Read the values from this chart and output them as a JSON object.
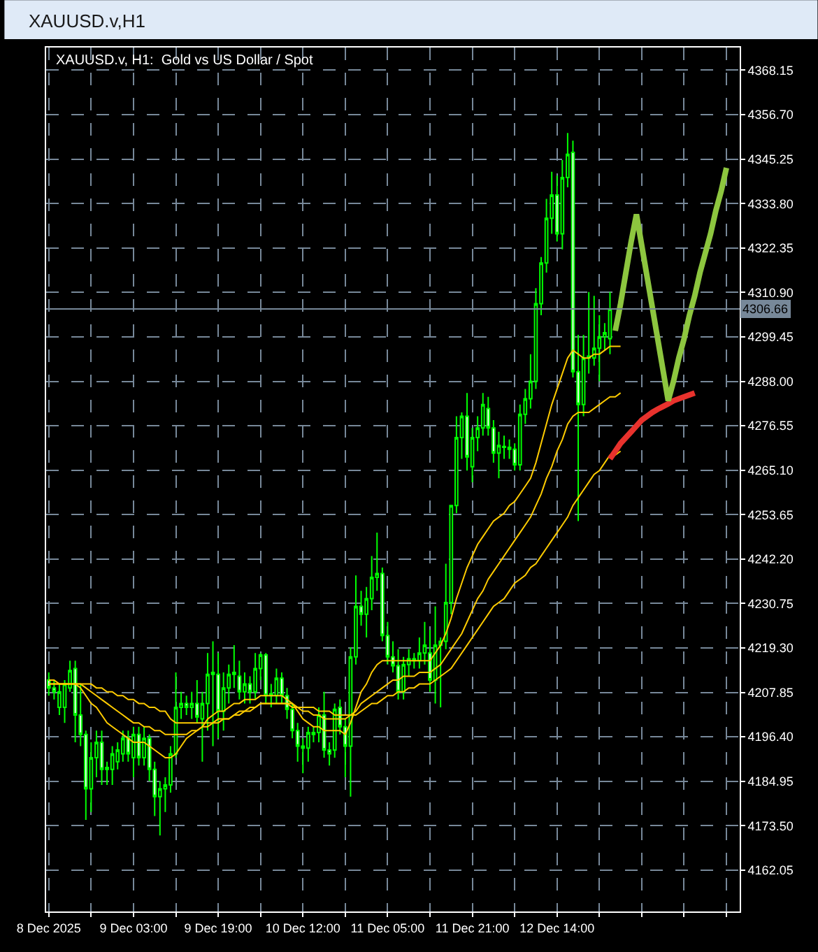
{
  "chart_data": {
    "type": "candlestick",
    "title": "XAUUSD.v,H1",
    "subtitle": "XAUUSD.v, H1:  Gold vs US Dollar / Spot",
    "color": "#00ff00",
    "categories": [
      "8 Dec 2025",
      null,
      null,
      null,
      null,
      null,
      null,
      null,
      null,
      null,
      null,
      null,
      null,
      null,
      null,
      null,
      "9 Dec 03:00",
      null,
      null,
      null,
      null,
      null,
      null,
      null,
      null,
      null,
      null,
      null,
      null,
      null,
      null,
      null,
      "9 Dec 19:00",
      null,
      null,
      null,
      null,
      null,
      null,
      null,
      null,
      null,
      null,
      null,
      null,
      null,
      null,
      null,
      "10 Dec 12:00",
      null,
      null,
      null,
      null,
      null,
      null,
      null,
      null,
      null,
      null,
      null,
      null,
      null,
      null,
      null,
      "11 Dec 05:00",
      null,
      null,
      null,
      null,
      null,
      null,
      null,
      null,
      null,
      null,
      null,
      null,
      null,
      null,
      null,
      "11 Dec 21:00",
      null,
      null,
      null,
      null,
      null,
      null,
      null,
      null,
      null,
      null,
      null,
      null,
      null,
      null,
      null,
      "12 Dec 14:00",
      null,
      null,
      null,
      null,
      null,
      null,
      null,
      null,
      null,
      null,
      null,
      null,
      null,
      null,
      null,
      null,
      null,
      null,
      null,
      null,
      null,
      null,
      null,
      null,
      null,
      null,
      null,
      null,
      null,
      null,
      null,
      null,
      null,
      null
    ],
    "ohlc": [
      [
        4211,
        4213,
        4207,
        4209
      ],
      [
        4209,
        4211,
        4206,
        4208
      ],
      [
        4204,
        4210,
        4202,
        4208
      ],
      [
        4204,
        4211,
        4200,
        4210
      ],
      [
        4209,
        4216,
        4208,
        4213.5
      ],
      [
        4214,
        4216,
        4195,
        4202
      ],
      [
        4202,
        4210,
        4194,
        4197
      ],
      [
        4197,
        4198,
        4175,
        4183
      ],
      [
        4183,
        4195,
        4177,
        4191
      ],
      [
        4191,
        4198,
        4186,
        4195
      ],
      [
        4195,
        4198,
        4184,
        4188
      ],
      [
        4188,
        4190,
        4184,
        4188.5
      ],
      [
        4188,
        4194,
        4184,
        4192
      ],
      [
        4190,
        4195,
        4188,
        4193
      ],
      [
        4192,
        4198,
        4190,
        4196
      ],
      [
        4196,
        4198,
        4190,
        4192
      ],
      [
        4191,
        4199,
        4186,
        4197
      ],
      [
        4197,
        4199,
        4189,
        4191
      ],
      [
        4191,
        4199,
        4189,
        4196
      ],
      [
        4196,
        4197,
        4185,
        4188
      ],
      [
        4188,
        4190,
        4176,
        4181
      ],
      [
        4181,
        4185,
        4171,
        4183
      ],
      [
        4183,
        4186,
        4177,
        4184
      ],
      [
        4184,
        4194,
        4182,
        4192
      ],
      [
        4192,
        4213,
        4191,
        4204
      ],
      [
        4204,
        4208,
        4201,
        4205
      ],
      [
        4205,
        4207,
        4202,
        4204
      ],
      [
        4204,
        4208,
        4201,
        4205
      ],
      [
        4205,
        4211,
        4200,
        4201.5
      ],
      [
        4201,
        4208,
        4190,
        4205
      ],
      [
        4205,
        4218,
        4198,
        4212.5
      ],
      [
        4212.5,
        4221,
        4194,
        4213
      ],
      [
        4212.5,
        4218,
        4196,
        4203
      ],
      [
        4203,
        4213,
        4198,
        4209
      ],
      [
        4209,
        4215,
        4205,
        4212.5
      ],
      [
        4212.5,
        4220,
        4209,
        4213
      ],
      [
        4212,
        4216,
        4206,
        4208
      ],
      [
        4208,
        4213,
        4205,
        4210
      ],
      [
        4210,
        4212,
        4205,
        4208
      ],
      [
        4208,
        4218,
        4206,
        4214
      ],
      [
        4214,
        4218,
        4211,
        4217.5
      ],
      [
        4217.5,
        4218,
        4205,
        4207
      ],
      [
        4207,
        4210,
        4204,
        4207.5
      ],
      [
        4207,
        4214,
        4205,
        4211.5
      ],
      [
        4211.5,
        4213,
        4205,
        4207
      ],
      [
        4207,
        4209,
        4201,
        4203.5
      ],
      [
        4203.5,
        4205,
        4196,
        4198
      ],
      [
        4198,
        4200,
        4190,
        4194
      ],
      [
        4194,
        4196,
        4187,
        4193.5
      ],
      [
        4193.5,
        4199,
        4190,
        4197.5
      ],
      [
        4197.5,
        4199,
        4195,
        4197
      ],
      [
        4197.5,
        4204,
        4195,
        4202
      ],
      [
        4202,
        4208,
        4191,
        4193
      ],
      [
        4193,
        4195,
        4189,
        4192
      ],
      [
        4193,
        4205,
        4191,
        4203.5
      ],
      [
        4204,
        4206,
        4197,
        4199
      ],
      [
        4199,
        4201,
        4186,
        4194
      ],
      [
        4194,
        4219.5,
        4181,
        4217
      ],
      [
        4217,
        4238,
        4215,
        4230
      ],
      [
        4230,
        4234,
        4225,
        4228
      ],
      [
        4228,
        4235,
        4222,
        4232
      ],
      [
        4232,
        4243,
        4229,
        4237.5
      ],
      [
        4237.5,
        4249,
        4234,
        4238.5
      ],
      [
        4238.5,
        4240,
        4221,
        4222.5
      ],
      [
        4222.5,
        4226,
        4215,
        4217
      ],
      [
        4217,
        4221,
        4213,
        4214.7
      ],
      [
        4214.7,
        4219,
        4206,
        4208
      ],
      [
        4208,
        4217,
        4206,
        4215
      ],
      [
        4215,
        4219,
        4212,
        4216.5
      ],
      [
        4216.5,
        4218,
        4214,
        4216
      ],
      [
        4216,
        4222,
        4214,
        4218
      ],
      [
        4218,
        4226,
        4215,
        4220
      ],
      [
        4218,
        4224,
        4208,
        4211
      ],
      [
        4211,
        4230,
        4205,
        4220
      ],
      [
        4220,
        4222,
        4204,
        4221
      ],
      [
        4221,
        4241,
        4219,
        4231
      ],
      [
        4231,
        4256,
        4228,
        4256
      ],
      [
        4256,
        4279,
        4254,
        4273.5
      ],
      [
        4273.5,
        4280,
        4268,
        4279
      ],
      [
        4279,
        4285,
        4265,
        4268.5
      ],
      [
        4266,
        4276,
        4262,
        4273.5
      ],
      [
        4273.5,
        4279,
        4270,
        4276
      ],
      [
        4276,
        4285,
        4274,
        4282
      ],
      [
        4281,
        4284,
        4274,
        4276
      ],
      [
        4276,
        4278,
        4267,
        4269.5
      ],
      [
        4269.5,
        4275,
        4263,
        4271.5
      ],
      [
        4271,
        4274,
        4268,
        4271.2
      ],
      [
        4271,
        4273,
        4268,
        4270.5
      ],
      [
        4270.5,
        4272,
        4265,
        4266.5
      ],
      [
        4266.5,
        4282,
        4265,
        4279.5
      ],
      [
        4279.5,
        4286,
        4277,
        4283.5
      ],
      [
        4283.5,
        4295,
        4281,
        4288
      ],
      [
        4288,
        4312,
        4286,
        4308
      ],
      [
        4308,
        4320,
        4305,
        4318.5
      ],
      [
        4318.5,
        4335,
        4316,
        4330
      ],
      [
        4330,
        4342,
        4326,
        4336
      ],
      [
        4336,
        4341,
        4324,
        4326
      ],
      [
        4326,
        4345,
        4322,
        4340.5
      ],
      [
        4340.5,
        4352,
        4338,
        4346.5
      ],
      [
        4347,
        4350,
        4289,
        4290.5
      ],
      [
        4290.5,
        4300,
        4252,
        4282
      ],
      [
        4282,
        4300,
        4279,
        4294
      ],
      [
        4294,
        4311,
        4290,
        4294.5
      ],
      [
        4294,
        4310,
        4292,
        4296.5
      ],
      [
        4296.5,
        4305,
        4288,
        4299.5
      ],
      [
        4299.5,
        4303,
        4296,
        4300.5
      ],
      [
        4299,
        4311,
        4295,
        4306.66
      ],
      null,
      null,
      null,
      null,
      null,
      null,
      null,
      null,
      null,
      null,
      null,
      null,
      null,
      null,
      null,
      null,
      null,
      null,
      null,
      null,
      null,
      null,
      null,
      null
    ],
    "series": [
      {
        "type": "line",
        "color": "#ffcc00",
        "values": [
          4211,
          4211,
          4210,
          4210,
          4210,
          4210,
          4209,
          4207,
          4205,
          4204,
          4202,
          4200,
          4199,
          4198,
          4197,
          4196,
          4195,
          4195,
          4195,
          4194,
          4193,
          4192,
          4191,
          4191,
          4192,
          4194,
          4196,
          4197,
          4198,
          4199,
          4201,
          4202,
          4203,
          4203,
          4204,
          4205,
          4205,
          4206,
          4206,
          4206,
          4207,
          4207,
          4207,
          4207,
          4207,
          4206,
          4205,
          4203,
          4201,
          4200,
          4199,
          4199,
          4198,
          4198,
          4198,
          4198,
          4197,
          4200,
          4204,
          4208,
          4210,
          4213,
          4215,
          4216,
          4216,
          4216,
          4216,
          4216,
          4216,
          4216,
          4216,
          4216,
          4216,
          4218,
          4220,
          4223,
          4227,
          4232,
          4236,
          4240,
          4243,
          4246,
          4248,
          4250,
          4252,
          4253,
          4254,
          4256,
          4257,
          4259,
          4261,
          4263,
          4267,
          4272,
          4277,
          4282,
          4286,
          4290,
          4294,
          4296,
          4295,
          4294,
          4294,
          4295,
          4295,
          4296,
          4297,
          4297,
          4297,
          null,
          null,
          null,
          null,
          null,
          null,
          null,
          null,
          null,
          null,
          null,
          null,
          null,
          null,
          null,
          null,
          null,
          null,
          null,
          null,
          null,
          null
        ]
      },
      {
        "type": "line",
        "color": "#ffcc00",
        "values": [
          4210,
          4210,
          4210,
          4210,
          4210,
          4210,
          4210,
          4209,
          4208,
          4207,
          4206,
          4205,
          4204,
          4203,
          4202,
          4201,
          4200,
          4200,
          4199,
          4199,
          4198,
          4198,
          4197,
          4197,
          4197,
          4197,
          4197,
          4198,
          4198,
          4199,
          4199,
          4200,
          4200,
          4201,
          4201,
          4202,
          4203,
          4203,
          4204,
          4204,
          4205,
          4205,
          4205,
          4205,
          4205,
          4205,
          4204,
          4204,
          4203,
          4203,
          4202,
          4202,
          4201,
          4201,
          4201,
          4201,
          4201,
          4202,
          4203,
          4205,
          4206,
          4207,
          4208,
          4209,
          4210,
          4211,
          4211,
          4212,
          4212,
          4212,
          4213,
          4213,
          4213,
          4214,
          4215,
          4217,
          4219,
          4221,
          4223,
          4226,
          4229,
          4232,
          4234,
          4237,
          4239,
          4241,
          4243,
          4245,
          4247,
          4249,
          4251,
          4253,
          4256,
          4259,
          4263,
          4266,
          4270,
          4273,
          4277,
          4279,
          4280,
          4280,
          4280,
          4281,
          4282,
          4283,
          4284,
          4284,
          4285,
          null,
          null,
          null,
          null,
          null,
          null,
          null,
          null,
          null,
          null,
          null,
          null,
          null,
          null,
          null,
          null,
          null,
          null,
          null,
          null,
          null,
          null
        ]
      },
      {
        "type": "line",
        "color": "#ffcc00",
        "values": [
          4210,
          4210,
          4210,
          4210,
          4210,
          4210,
          4210,
          4210,
          4210,
          4209,
          4209,
          4208,
          4208,
          4207,
          4207,
          4206,
          4206,
          4205,
          4205,
          4204,
          4204,
          4203,
          4203,
          4201,
          4200,
          4200,
          4200,
          4200,
          4200,
          4200,
          4200,
          4200,
          4201,
          4201,
          4201,
          4202,
          4202,
          4203,
          4203,
          4204,
          4205,
          4205,
          4205,
          4205,
          4205,
          4205,
          4205,
          4204,
          4204,
          4204,
          4204,
          4203,
          4203,
          4203,
          4202,
          4202,
          4202,
          4202,
          4202,
          4203,
          4204,
          4205,
          4205,
          4206,
          4207,
          4207,
          4208,
          4208,
          4209,
          4209,
          4210,
          4210,
          4210,
          4211,
          4212,
          4213,
          4214,
          4216,
          4218,
          4220,
          4222,
          4224,
          4226,
          4228,
          4230,
          4231,
          4232,
          4234,
          4236,
          4237,
          4238,
          4240,
          4241,
          4243,
          4245,
          4247,
          4249,
          4251,
          4253,
          4256,
          4258,
          4260,
          4262,
          4264,
          4265,
          4267,
          4269,
          4269,
          4270,
          null,
          null,
          null,
          null,
          null,
          null,
          null,
          null,
          null,
          null,
          null,
          null,
          null,
          null,
          null,
          null,
          null,
          null,
          null,
          null,
          null,
          null
        ]
      },
      {
        "type": "line",
        "color": "#e8322d",
        "values": [
          null,
          null,
          null,
          null,
          null,
          null,
          null,
          null,
          null,
          null,
          null,
          null,
          null,
          null,
          null,
          null,
          null,
          null,
          null,
          null,
          null,
          null,
          null,
          null,
          null,
          null,
          null,
          null,
          null,
          null,
          null,
          null,
          null,
          null,
          null,
          null,
          null,
          null,
          null,
          null,
          null,
          null,
          null,
          null,
          null,
          null,
          null,
          null,
          null,
          null,
          null,
          null,
          null,
          null,
          null,
          null,
          null,
          null,
          null,
          null,
          null,
          null,
          null,
          null,
          null,
          null,
          null,
          null,
          null,
          null,
          null,
          null,
          null,
          null,
          null,
          null,
          null,
          null,
          null,
          null,
          null,
          null,
          null,
          null,
          null,
          null,
          null,
          null,
          null,
          null,
          null,
          null,
          null,
          null,
          null,
          null,
          null,
          null,
          null,
          null,
          null,
          null,
          null,
          null,
          null,
          null,
          4268,
          4270,
          4272,
          4273.5,
          4275,
          4276.5,
          4278,
          4279,
          4280,
          4280.8,
          4281.5,
          4282.2,
          4283,
          4283.5,
          4284,
          4284.5,
          4285,
          null,
          null,
          null,
          null,
          null,
          null,
          null,
          null
        ]
      },
      {
        "type": "line",
        "color": "#8dc63f",
        "values": [
          null,
          null,
          null,
          null,
          null,
          null,
          null,
          null,
          null,
          null,
          null,
          null,
          null,
          null,
          null,
          null,
          null,
          null,
          null,
          null,
          null,
          null,
          null,
          null,
          null,
          null,
          null,
          null,
          null,
          null,
          null,
          null,
          null,
          null,
          null,
          null,
          null,
          null,
          null,
          null,
          null,
          null,
          null,
          null,
          null,
          null,
          null,
          null,
          null,
          null,
          null,
          null,
          null,
          null,
          null,
          null,
          null,
          null,
          null,
          null,
          null,
          null,
          null,
          null,
          null,
          null,
          null,
          null,
          null,
          null,
          null,
          null,
          null,
          null,
          null,
          null,
          null,
          null,
          null,
          null,
          null,
          null,
          null,
          null,
          null,
          null,
          null,
          null,
          null,
          null,
          null,
          null,
          null,
          null,
          null,
          null,
          null,
          null,
          null,
          null,
          null,
          null,
          null,
          null,
          null,
          null,
          null,
          4301,
          4308,
          4316,
          4324,
          4331,
          4323,
          4315,
          4307,
          4299,
          4291,
          4283,
          4288,
          4294,
          4299,
          4305,
          4310,
          4316,
          4321,
          4326,
          4332,
          4337,
          4343,
          null,
          null
        ]
      }
    ],
    "ylim": [
      4151.4,
      4374
    ],
    "yticks": [
      4162.05,
      {
        "value": 4173.5,
        "label": "4173.50"
      },
      4184.95,
      {
        "value": 4196.4,
        "label": "4196.40"
      },
      4207.85,
      {
        "value": 4219.3,
        "label": "4219.30"
      },
      4230.75,
      {
        "value": 4242.2,
        "label": "4242.20"
      },
      4253.65,
      {
        "value": 4265.1,
        "label": "4265.10"
      },
      4276.55,
      {
        "value": 4288,
        "label": "4288.00"
      },
      4299.45,
      {
        "value": 4310.9,
        "label": "4310.90"
      },
      4322.35,
      {
        "value": 4333.8,
        "label": "4333.80"
      },
      4345.25,
      {
        "value": 4356.7,
        "label": "4356.70"
      },
      4368.15
    ],
    "ref_lines": [
      {
        "axis": "y",
        "value": 4306.66,
        "label": "4306.66",
        "color": "#778899"
      }
    ],
    "grid": true
  }
}
